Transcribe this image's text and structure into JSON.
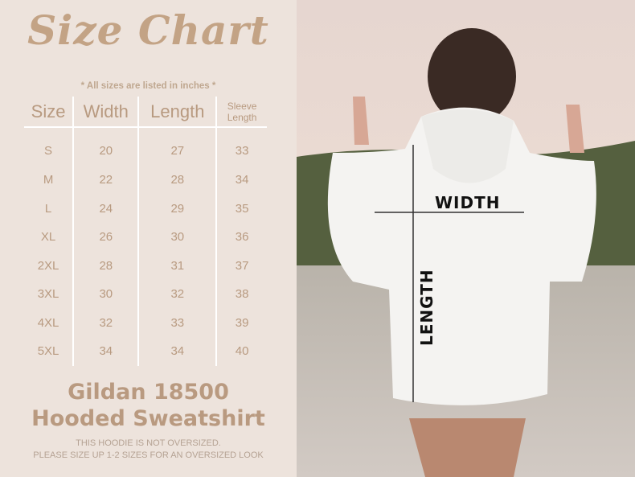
{
  "title": "Size Chart",
  "note": "* All sizes are listed in inches *",
  "table": {
    "headers": [
      "Size",
      "Width",
      "Length",
      "Sleeve Length"
    ],
    "rows": [
      [
        "S",
        "20",
        "27",
        "33"
      ],
      [
        "M",
        "22",
        "28",
        "34"
      ],
      [
        "L",
        "24",
        "29",
        "35"
      ],
      [
        "XL",
        "26",
        "30",
        "36"
      ],
      [
        "2XL",
        "28",
        "31",
        "37"
      ],
      [
        "3XL",
        "30",
        "32",
        "38"
      ],
      [
        "4XL",
        "32",
        "33",
        "39"
      ],
      [
        "5XL",
        "34",
        "34",
        "40"
      ]
    ]
  },
  "product": {
    "line1": "Gildan 18500",
    "line2": "Hooded Sweatshirt"
  },
  "disclaimer": {
    "line1": "THIS HOODIE IS NOT OVERSIZED.",
    "line2": "PLEASE SIZE UP 1-2 SIZES FOR AN OVERSIZED LOOK"
  },
  "photo": {
    "width_label": "WIDTH",
    "length_label": "LENGTH"
  },
  "colors": {
    "accent": "#b99a80",
    "background": "#ede3dc"
  }
}
